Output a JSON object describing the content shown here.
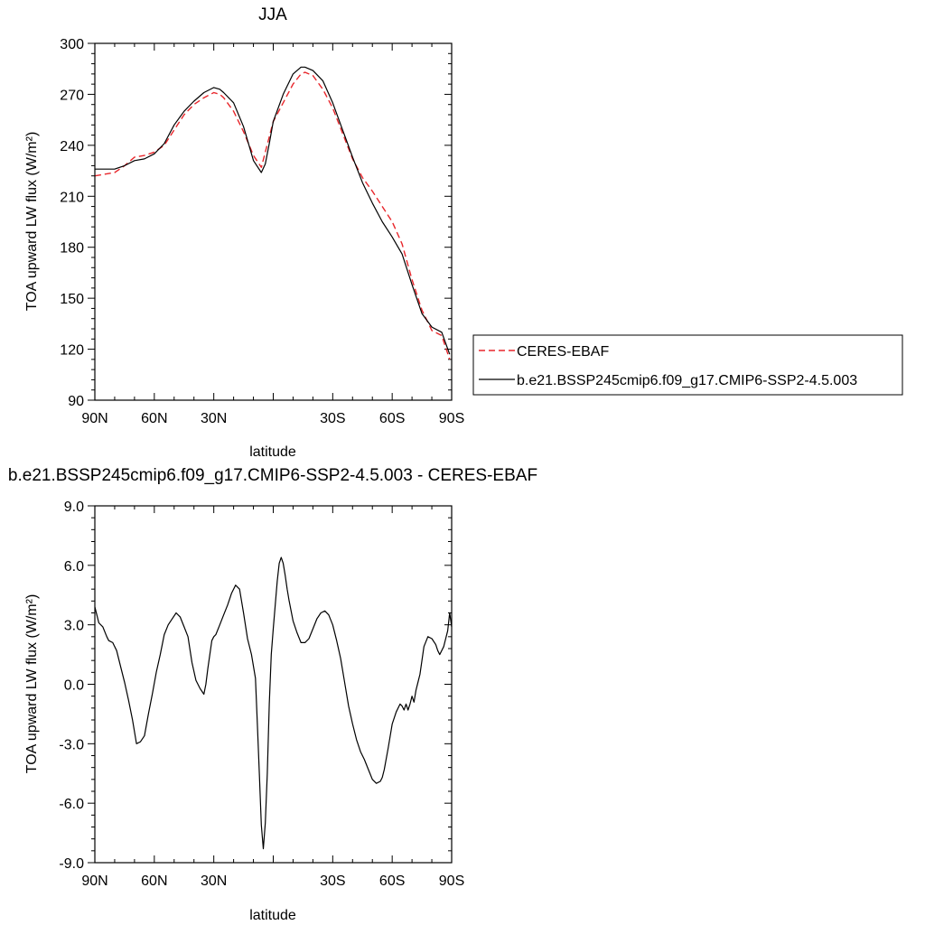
{
  "chart_data": [
    {
      "type": "line",
      "title": "JJA",
      "xlabel": "latitude",
      "ylabel": "TOA upward LW flux (W/m²)",
      "xlim": [
        90,
        -90
      ],
      "ylim": [
        90,
        300
      ],
      "xticks": [
        90,
        60,
        30,
        0,
        -30,
        -60,
        -90
      ],
      "xtick_labels": [
        "90N",
        "60N",
        "30N",
        "",
        "30S",
        "60S",
        "90S"
      ],
      "yticks": [
        90,
        120,
        150,
        180,
        210,
        240,
        270,
        300
      ],
      "ytick_labels": [
        "90",
        "120",
        "150",
        "180",
        "210",
        "240",
        "270",
        "300"
      ],
      "legend": "right",
      "series": [
        {
          "name": "CERES-EBAF",
          "color": "#e8262b",
          "dash": "dashed",
          "x": [
            90,
            85,
            80,
            75,
            70,
            65,
            60,
            55,
            50,
            45,
            40,
            35,
            30,
            27,
            25,
            20,
            15,
            10,
            6,
            4,
            2,
            0,
            -5,
            -10,
            -14,
            -16,
            -20,
            -25,
            -30,
            -35,
            -40,
            -45,
            -50,
            -55,
            -60,
            -65,
            -70,
            -75,
            -80,
            -85,
            -89
          ],
          "y": [
            222,
            223,
            224,
            228,
            233,
            234,
            236,
            240,
            249,
            258,
            264,
            268,
            271,
            270,
            268,
            260,
            248,
            234,
            227,
            236,
            245,
            254,
            265,
            276,
            282,
            283,
            281,
            273,
            262,
            247,
            232,
            221,
            213,
            204,
            195,
            182,
            161,
            143,
            131,
            128,
            114
          ]
        },
        {
          "name": "b.e21.BSSP245cmip6.f09_g17.CMIP6-SSP2-4.5.003",
          "color": "#000000",
          "dash": "solid",
          "x": [
            90,
            85,
            80,
            75,
            70,
            65,
            60,
            55,
            50,
            45,
            40,
            35,
            30,
            27,
            25,
            20,
            15,
            10,
            6,
            4,
            2,
            0,
            -5,
            -10,
            -14,
            -16,
            -20,
            -25,
            -30,
            -35,
            -40,
            -45,
            -50,
            -55,
            -60,
            -65,
            -70,
            -75,
            -80,
            -85,
            -89
          ],
          "y": [
            226,
            226,
            226,
            228,
            231,
            232,
            235,
            241,
            252,
            260,
            266,
            271,
            274,
            273,
            271,
            265,
            251,
            231,
            224,
            229,
            241,
            254,
            270,
            282,
            286,
            286,
            284,
            278,
            265,
            249,
            233,
            218,
            206,
            195,
            186,
            176,
            158,
            141,
            133,
            130,
            117
          ]
        }
      ]
    },
    {
      "type": "line",
      "title": "b.e21.BSSP245cmip6.f09_g17.CMIP6-SSP2-4.5.003 - CERES-EBAF",
      "xlabel": "latitude",
      "ylabel": "TOA upward LW flux (W/m²)",
      "xlim": [
        90,
        -90
      ],
      "ylim": [
        -9,
        9
      ],
      "xticks": [
        90,
        60,
        30,
        0,
        -30,
        -60,
        -90
      ],
      "xtick_labels": [
        "90N",
        "60N",
        "30N",
        "",
        "30S",
        "60S",
        "90S"
      ],
      "yticks": [
        -9,
        -6,
        -3,
        0,
        3,
        6,
        9
      ],
      "ytick_labels": [
        "-9.0",
        "-6.0",
        "-3.0",
        "0.0",
        "3.0",
        "6.0",
        "9.0"
      ],
      "series": [
        {
          "name": "",
          "color": "#000000",
          "dash": "solid",
          "x": [
            90,
            89,
            88,
            86,
            84,
            83,
            81,
            79,
            77,
            75,
            73,
            71,
            69,
            67,
            65,
            63,
            61,
            59,
            57,
            55,
            53,
            51,
            49,
            47,
            45,
            43,
            41,
            39,
            37,
            35,
            34,
            33,
            31,
            30,
            29,
            27,
            25,
            23,
            21,
            19,
            17,
            15,
            13,
            11,
            9,
            8,
            7,
            6,
            5,
            4,
            3,
            2,
            1,
            0,
            -1,
            -2,
            -3,
            -4,
            -5,
            -6,
            -7,
            -8,
            -10,
            -12,
            -14,
            -16,
            -18,
            -20,
            -22,
            -24,
            -26,
            -28,
            -30,
            -32,
            -34,
            -36,
            -38,
            -40,
            -42,
            -44,
            -46,
            -48,
            -50,
            -52,
            -54,
            -55,
            -56,
            -58,
            -60,
            -62,
            -64,
            -65,
            -66,
            -67,
            -68,
            -69,
            -70,
            -71,
            -72,
            -73,
            -74,
            -75,
            -76,
            -78,
            -80,
            -82,
            -83,
            -84,
            -86,
            -87,
            -88,
            -89,
            -90
          ],
          "y": [
            3.9,
            3.5,
            3.1,
            2.9,
            2.4,
            2.2,
            2.1,
            1.7,
            0.9,
            0.1,
            -0.8,
            -1.8,
            -3.0,
            -2.9,
            -2.6,
            -1.5,
            -0.5,
            0.6,
            1.5,
            2.5,
            3.0,
            3.3,
            3.6,
            3.4,
            2.9,
            2.4,
            1.1,
            0.2,
            -0.2,
            -0.5,
            0.0,
            0.8,
            2.2,
            2.4,
            2.5,
            3.0,
            3.5,
            4.0,
            4.6,
            5.0,
            4.8,
            3.6,
            2.3,
            1.5,
            0.3,
            -2.0,
            -4.5,
            -7.1,
            -8.3,
            -7.0,
            -4.5,
            -1.0,
            1.5,
            2.8,
            4.0,
            5.2,
            6.1,
            6.4,
            6.1,
            5.5,
            4.8,
            4.2,
            3.2,
            2.6,
            2.1,
            2.1,
            2.3,
            2.8,
            3.3,
            3.6,
            3.7,
            3.5,
            3.0,
            2.2,
            1.3,
            0.1,
            -1.1,
            -2.0,
            -2.8,
            -3.4,
            -3.8,
            -4.3,
            -4.8,
            -5.0,
            -4.9,
            -4.7,
            -4.3,
            -3.2,
            -2.0,
            -1.4,
            -1.0,
            -1.1,
            -1.3,
            -1.0,
            -1.3,
            -1.0,
            -0.6,
            -0.9,
            -0.3,
            0.1,
            0.5,
            1.2,
            1.9,
            2.4,
            2.3,
            2.0,
            1.7,
            1.5,
            1.9,
            2.3,
            2.7,
            3.6,
            2.9
          ]
        }
      ]
    }
  ]
}
